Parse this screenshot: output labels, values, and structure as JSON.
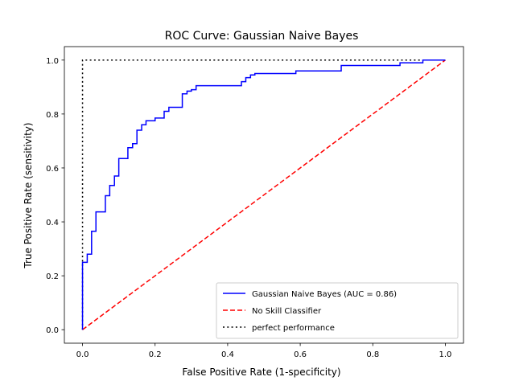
{
  "chart_data": {
    "type": "line",
    "title": "ROC Curve: Gaussian Naive Bayes",
    "xlabel": "False Positive Rate (1-specificity)",
    "ylabel": "True Positive Rate (sensitivity)",
    "xlim": [
      -0.05,
      1.05
    ],
    "ylim": [
      -0.05,
      1.05
    ],
    "x_ticks": [
      {
        "value": 0.0,
        "label": "0.0"
      },
      {
        "value": 0.2,
        "label": "0.2"
      },
      {
        "value": 0.4,
        "label": "0.4"
      },
      {
        "value": 0.6,
        "label": "0.6"
      },
      {
        "value": 0.8,
        "label": "0.8"
      },
      {
        "value": 1.0,
        "label": "1.0"
      }
    ],
    "y_ticks": [
      {
        "value": 0.0,
        "label": "0.0"
      },
      {
        "value": 0.2,
        "label": "0.2"
      },
      {
        "value": 0.4,
        "label": "0.4"
      },
      {
        "value": 0.6,
        "label": "0.6"
      },
      {
        "value": 0.8,
        "label": "0.8"
      },
      {
        "value": 1.0,
        "label": "1.0"
      }
    ],
    "grid": false,
    "legend_position": "bottom-right",
    "series": [
      {
        "name": "Gaussian Naive Bayes (AUC = 0.86)",
        "color": "#0000ff",
        "line_style": "solid",
        "x": [
          0.0,
          0.0,
          0.0,
          0.013,
          0.013,
          0.025,
          0.025,
          0.037,
          0.037,
          0.063,
          0.063,
          0.075,
          0.075,
          0.088,
          0.088,
          0.1,
          0.1,
          0.125,
          0.125,
          0.138,
          0.138,
          0.15,
          0.15,
          0.163,
          0.163,
          0.175,
          0.175,
          0.2,
          0.2,
          0.225,
          0.225,
          0.238,
          0.238,
          0.275,
          0.275,
          0.288,
          0.288,
          0.3,
          0.3,
          0.313,
          0.313,
          0.438,
          0.438,
          0.45,
          0.45,
          0.463,
          0.463,
          0.475,
          0.475,
          0.588,
          0.588,
          0.713,
          0.713,
          0.875,
          0.875,
          0.938,
          0.938,
          1.0
        ],
        "y": [
          0.0,
          0.0,
          0.25,
          0.25,
          0.28,
          0.28,
          0.365,
          0.365,
          0.437,
          0.437,
          0.497,
          0.497,
          0.535,
          0.535,
          0.57,
          0.57,
          0.635,
          0.635,
          0.675,
          0.675,
          0.69,
          0.69,
          0.74,
          0.74,
          0.76,
          0.76,
          0.775,
          0.775,
          0.785,
          0.785,
          0.81,
          0.81,
          0.825,
          0.825,
          0.875,
          0.875,
          0.885,
          0.885,
          0.89,
          0.89,
          0.905,
          0.905,
          0.92,
          0.92,
          0.935,
          0.935,
          0.945,
          0.945,
          0.95,
          0.95,
          0.96,
          0.96,
          0.98,
          0.98,
          0.99,
          0.99,
          1.0,
          1.0
        ]
      },
      {
        "name": "No Skill Classifier",
        "color": "#ff0000",
        "line_style": "dashed",
        "x": [
          0.0,
          1.0
        ],
        "y": [
          0.0,
          1.0
        ]
      },
      {
        "name": "perfect performance",
        "color": "#000000",
        "line_style": "dotted",
        "x": [
          0.0,
          0.0,
          1.0
        ],
        "y": [
          0.0,
          1.0,
          1.0
        ]
      }
    ]
  }
}
